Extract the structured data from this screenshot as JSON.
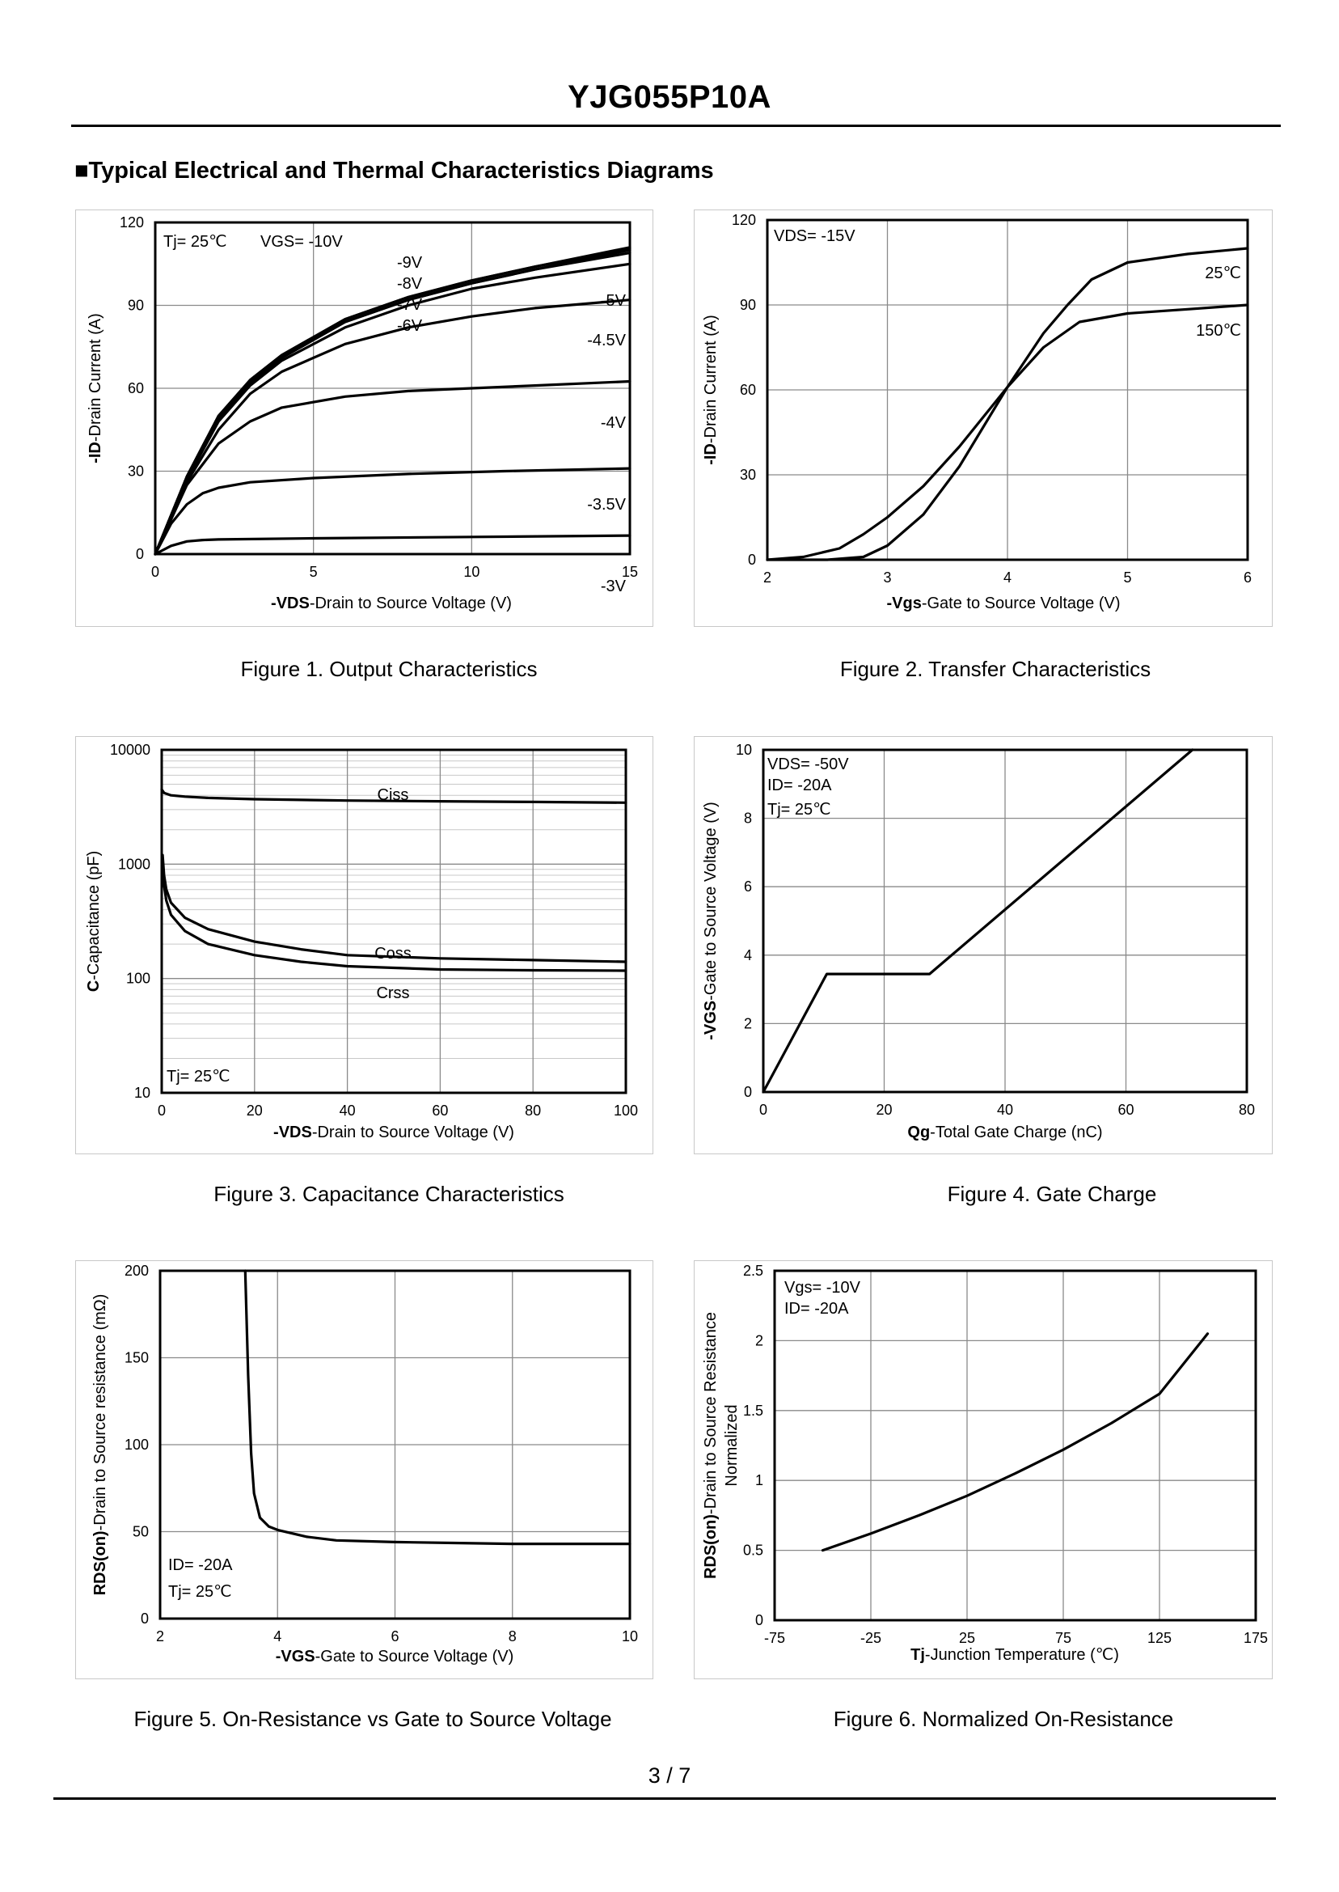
{
  "document": {
    "title": "YJG055P10A",
    "section_heading": "■Typical Electrical and Thermal Characteristics Diagrams",
    "page_number": "3 / 7"
  },
  "chart_data": [
    {
      "id": "fig1",
      "type": "line",
      "caption": "Figure 1.  Output Characteristics",
      "xlabel_bold": "-VDS",
      "xlabel_rest": "-Drain to Source Voltage (V)",
      "ylabel_bold": "-ID",
      "ylabel_rest": "-Drain Current  (A)",
      "x_ticks": [
        "0",
        "5",
        "10",
        "15"
      ],
      "y_ticks": [
        "0",
        "30",
        "60",
        "90",
        "120"
      ],
      "xlim": [
        0,
        15
      ],
      "ylim": [
        0,
        120
      ],
      "annotations": [
        "Tj= 25℃",
        "VGS= -10V",
        "-9V",
        "-8V",
        "-7V",
        "-6V",
        "-5V",
        "-4.5V",
        "-4V",
        "-3.5V",
        "-3V"
      ],
      "series": [
        {
          "name": "-10V",
          "x": [
            0,
            1,
            2,
            3,
            4,
            6,
            8,
            10,
            12,
            15
          ],
          "y": [
            0,
            28,
            50,
            63,
            72,
            85,
            93,
            99,
            104,
            111
          ]
        },
        {
          "name": "-9V",
          "x": [
            0,
            1,
            2,
            3,
            4,
            6,
            8,
            10,
            12,
            15
          ],
          "y": [
            0,
            28,
            50,
            63,
            72,
            85,
            93,
            99,
            104,
            110.5
          ]
        },
        {
          "name": "-8V",
          "x": [
            0,
            1,
            2,
            3,
            4,
            6,
            8,
            10,
            12,
            15
          ],
          "y": [
            0,
            28,
            50,
            62,
            71,
            84,
            92,
            98,
            103,
            110
          ]
        },
        {
          "name": "-7V",
          "x": [
            0,
            1,
            2,
            3,
            4,
            6,
            8,
            10,
            12,
            15
          ],
          "y": [
            0,
            27,
            49,
            62,
            71,
            84,
            92,
            98,
            103,
            109
          ]
        },
        {
          "name": "-6V",
          "x": [
            0,
            1,
            2,
            3,
            4,
            6,
            8,
            10,
            12,
            15
          ],
          "y": [
            0,
            27,
            48,
            61,
            70,
            82,
            90,
            96,
            100,
            105
          ]
        },
        {
          "name": "-5V",
          "x": [
            0,
            1,
            2,
            3,
            4,
            6,
            8,
            10,
            12,
            15
          ],
          "y": [
            0,
            26,
            45,
            58,
            66,
            76,
            82,
            86,
            89,
            92
          ]
        },
        {
          "name": "-4V",
          "x": [
            0,
            1,
            2,
            3,
            4,
            6,
            8,
            10,
            12,
            15
          ],
          "y": [
            0,
            25,
            40,
            48,
            53,
            57,
            59,
            60,
            61,
            62.5
          ]
        },
        {
          "name": "-3.5V",
          "x": [
            0,
            0.5,
            1,
            1.5,
            2,
            3,
            5,
            8,
            11,
            15
          ],
          "y": [
            0,
            11,
            18,
            22,
            24,
            26,
            27.5,
            29,
            30,
            31
          ]
        },
        {
          "name": "-3V",
          "x": [
            0,
            0.5,
            1,
            1.5,
            2,
            5,
            10,
            15
          ],
          "y": [
            0,
            3,
            4.6,
            5.1,
            5.3,
            5.7,
            6.2,
            6.7
          ]
        }
      ]
    },
    {
      "id": "fig2",
      "type": "line",
      "caption": "Figure 2.  Transfer Characteristics",
      "xlabel_bold": "-Vgs",
      "xlabel_rest": "-Gate to Source Voltage (V)",
      "ylabel_bold": "-ID",
      "ylabel_rest": "-Drain Current  (A)",
      "x_ticks": [
        "2",
        "3",
        "4",
        "5",
        "6"
      ],
      "y_ticks": [
        "0",
        "30",
        "60",
        "90",
        "120"
      ],
      "xlim": [
        2,
        6
      ],
      "ylim": [
        0,
        120
      ],
      "annotations": [
        "VDS= -15V",
        "25℃",
        "150℃"
      ],
      "series": [
        {
          "name": "25℃",
          "x": [
            2,
            2.5,
            2.8,
            3.0,
            3.3,
            3.6,
            4.0,
            4.3,
            4.5,
            4.7,
            5.0,
            5.5,
            6.0
          ],
          "y": [
            0,
            0,
            1,
            5,
            16,
            33,
            61,
            80,
            90,
            99,
            105,
            108,
            110
          ]
        },
        {
          "name": "150℃",
          "x": [
            2,
            2.3,
            2.6,
            2.8,
            3.0,
            3.3,
            3.6,
            4.0,
            4.3,
            4.6,
            5.0,
            5.5,
            6.0
          ],
          "y": [
            0,
            1,
            4,
            9,
            15,
            26,
            40,
            61,
            75,
            84,
            87,
            88.5,
            90
          ]
        }
      ]
    },
    {
      "id": "fig3",
      "type": "line",
      "scale": "log-y",
      "caption": "Figure 3.  Capacitance Characteristics",
      "xlabel_bold": "-VDS",
      "xlabel_rest": "-Drain to Source Voltage (V)",
      "ylabel_bold": "C",
      "ylabel_rest": "-Capacitance (pF)",
      "x_ticks": [
        "0",
        "20",
        "40",
        "60",
        "80",
        "100"
      ],
      "y_ticks": [
        "10",
        "100",
        "1000",
        "10000"
      ],
      "xlim": [
        0,
        100
      ],
      "ylim": [
        10,
        10000
      ],
      "annotations": [
        "Ciss",
        "Coss",
        "Crss",
        "Tj= 25℃"
      ],
      "series": [
        {
          "name": "Ciss",
          "x": [
            0,
            0.5,
            2,
            5,
            10,
            20,
            40,
            60,
            80,
            100
          ],
          "y": [
            4500,
            4200,
            4000,
            3900,
            3800,
            3700,
            3600,
            3550,
            3500,
            3450
          ]
        },
        {
          "name": "Coss",
          "x": [
            0.2,
            0.5,
            1,
            2,
            5,
            10,
            20,
            30,
            40,
            60,
            80,
            100
          ],
          "y": [
            1200,
            800,
            600,
            460,
            340,
            270,
            210,
            180,
            160,
            150,
            145,
            140
          ]
        },
        {
          "name": "Crss",
          "x": [
            0.2,
            0.5,
            1,
            2,
            5,
            10,
            20,
            30,
            40,
            60,
            80,
            100
          ],
          "y": [
            1000,
            650,
            480,
            360,
            260,
            200,
            160,
            140,
            128,
            120,
            118,
            117
          ]
        }
      ]
    },
    {
      "id": "fig4",
      "type": "line",
      "caption": "Figure 4.  Gate Charge",
      "xlabel_bold": "Qg",
      "xlabel_rest": "-Total  Gate  Charge  (nC)",
      "ylabel_bold": "-VGS",
      "ylabel_rest": "-Gate to Source Voltage (V)",
      "x_ticks": [
        "0",
        "20",
        "40",
        "60",
        "80"
      ],
      "y_ticks": [
        "0",
        "2",
        "4",
        "6",
        "8",
        "10"
      ],
      "xlim": [
        0,
        80
      ],
      "ylim": [
        0,
        10
      ],
      "annotations": [
        "VDS= -50V",
        "ID= -20A",
        "Tj= 25℃"
      ],
      "series": [
        {
          "name": "VGS",
          "x": [
            0,
            10.5,
            27.5,
            71
          ],
          "y": [
            0,
            3.45,
            3.45,
            10
          ]
        }
      ]
    },
    {
      "id": "fig5",
      "type": "line",
      "caption": "Figure 5.  On-Resistance vs Gate to Source Voltage",
      "xlabel_bold": "-VGS",
      "xlabel_rest": "-Gate to Source Voltage (V)",
      "ylabel_bold": "RDS(on)",
      "ylabel_rest": "-Drain to Source resistance (mΩ)",
      "x_ticks": [
        "2",
        "4",
        "6",
        "8",
        "10"
      ],
      "y_ticks": [
        "0",
        "50",
        "100",
        "150",
        "200"
      ],
      "xlim": [
        2,
        10
      ],
      "ylim": [
        0,
        200
      ],
      "annotations": [
        "ID= -20A",
        "Tj= 25℃"
      ],
      "series": [
        {
          "name": "RDS(on)",
          "x": [
            3.45,
            3.5,
            3.55,
            3.6,
            3.7,
            3.85,
            4.0,
            4.5,
            5,
            6,
            7,
            8,
            9,
            10
          ],
          "y": [
            200,
            140,
            95,
            72,
            58,
            53,
            51,
            47,
            45,
            44,
            43.5,
            43,
            43,
            43
          ]
        }
      ]
    },
    {
      "id": "fig6",
      "type": "line",
      "caption": "Figure 6.  Normalized On-Resistance",
      "xlabel_bold": "Tj",
      "xlabel_rest": "-Junction  Temperature  (℃)",
      "ylabel_bold": "RDS(on)",
      "ylabel_rest": "-Drain to Source Resistance",
      "ylabel_line2": "Normalized",
      "x_ticks": [
        "-75",
        "-25",
        "25",
        "75",
        "125",
        "175"
      ],
      "y_ticks": [
        "0",
        "0.5",
        "1",
        "1.5",
        "2",
        "2.5"
      ],
      "xlim": [
        -75,
        175
      ],
      "ylim": [
        0,
        2.5
      ],
      "annotations": [
        "Vgs= -10V",
        "ID= -20A"
      ],
      "series": [
        {
          "name": "Normalized RDS(on)",
          "x": [
            -50,
            -25,
            0,
            25,
            50,
            75,
            100,
            125,
            150
          ],
          "y": [
            0.5,
            0.62,
            0.75,
            0.89,
            1.05,
            1.22,
            1.41,
            1.62,
            2.05
          ]
        }
      ]
    }
  ]
}
